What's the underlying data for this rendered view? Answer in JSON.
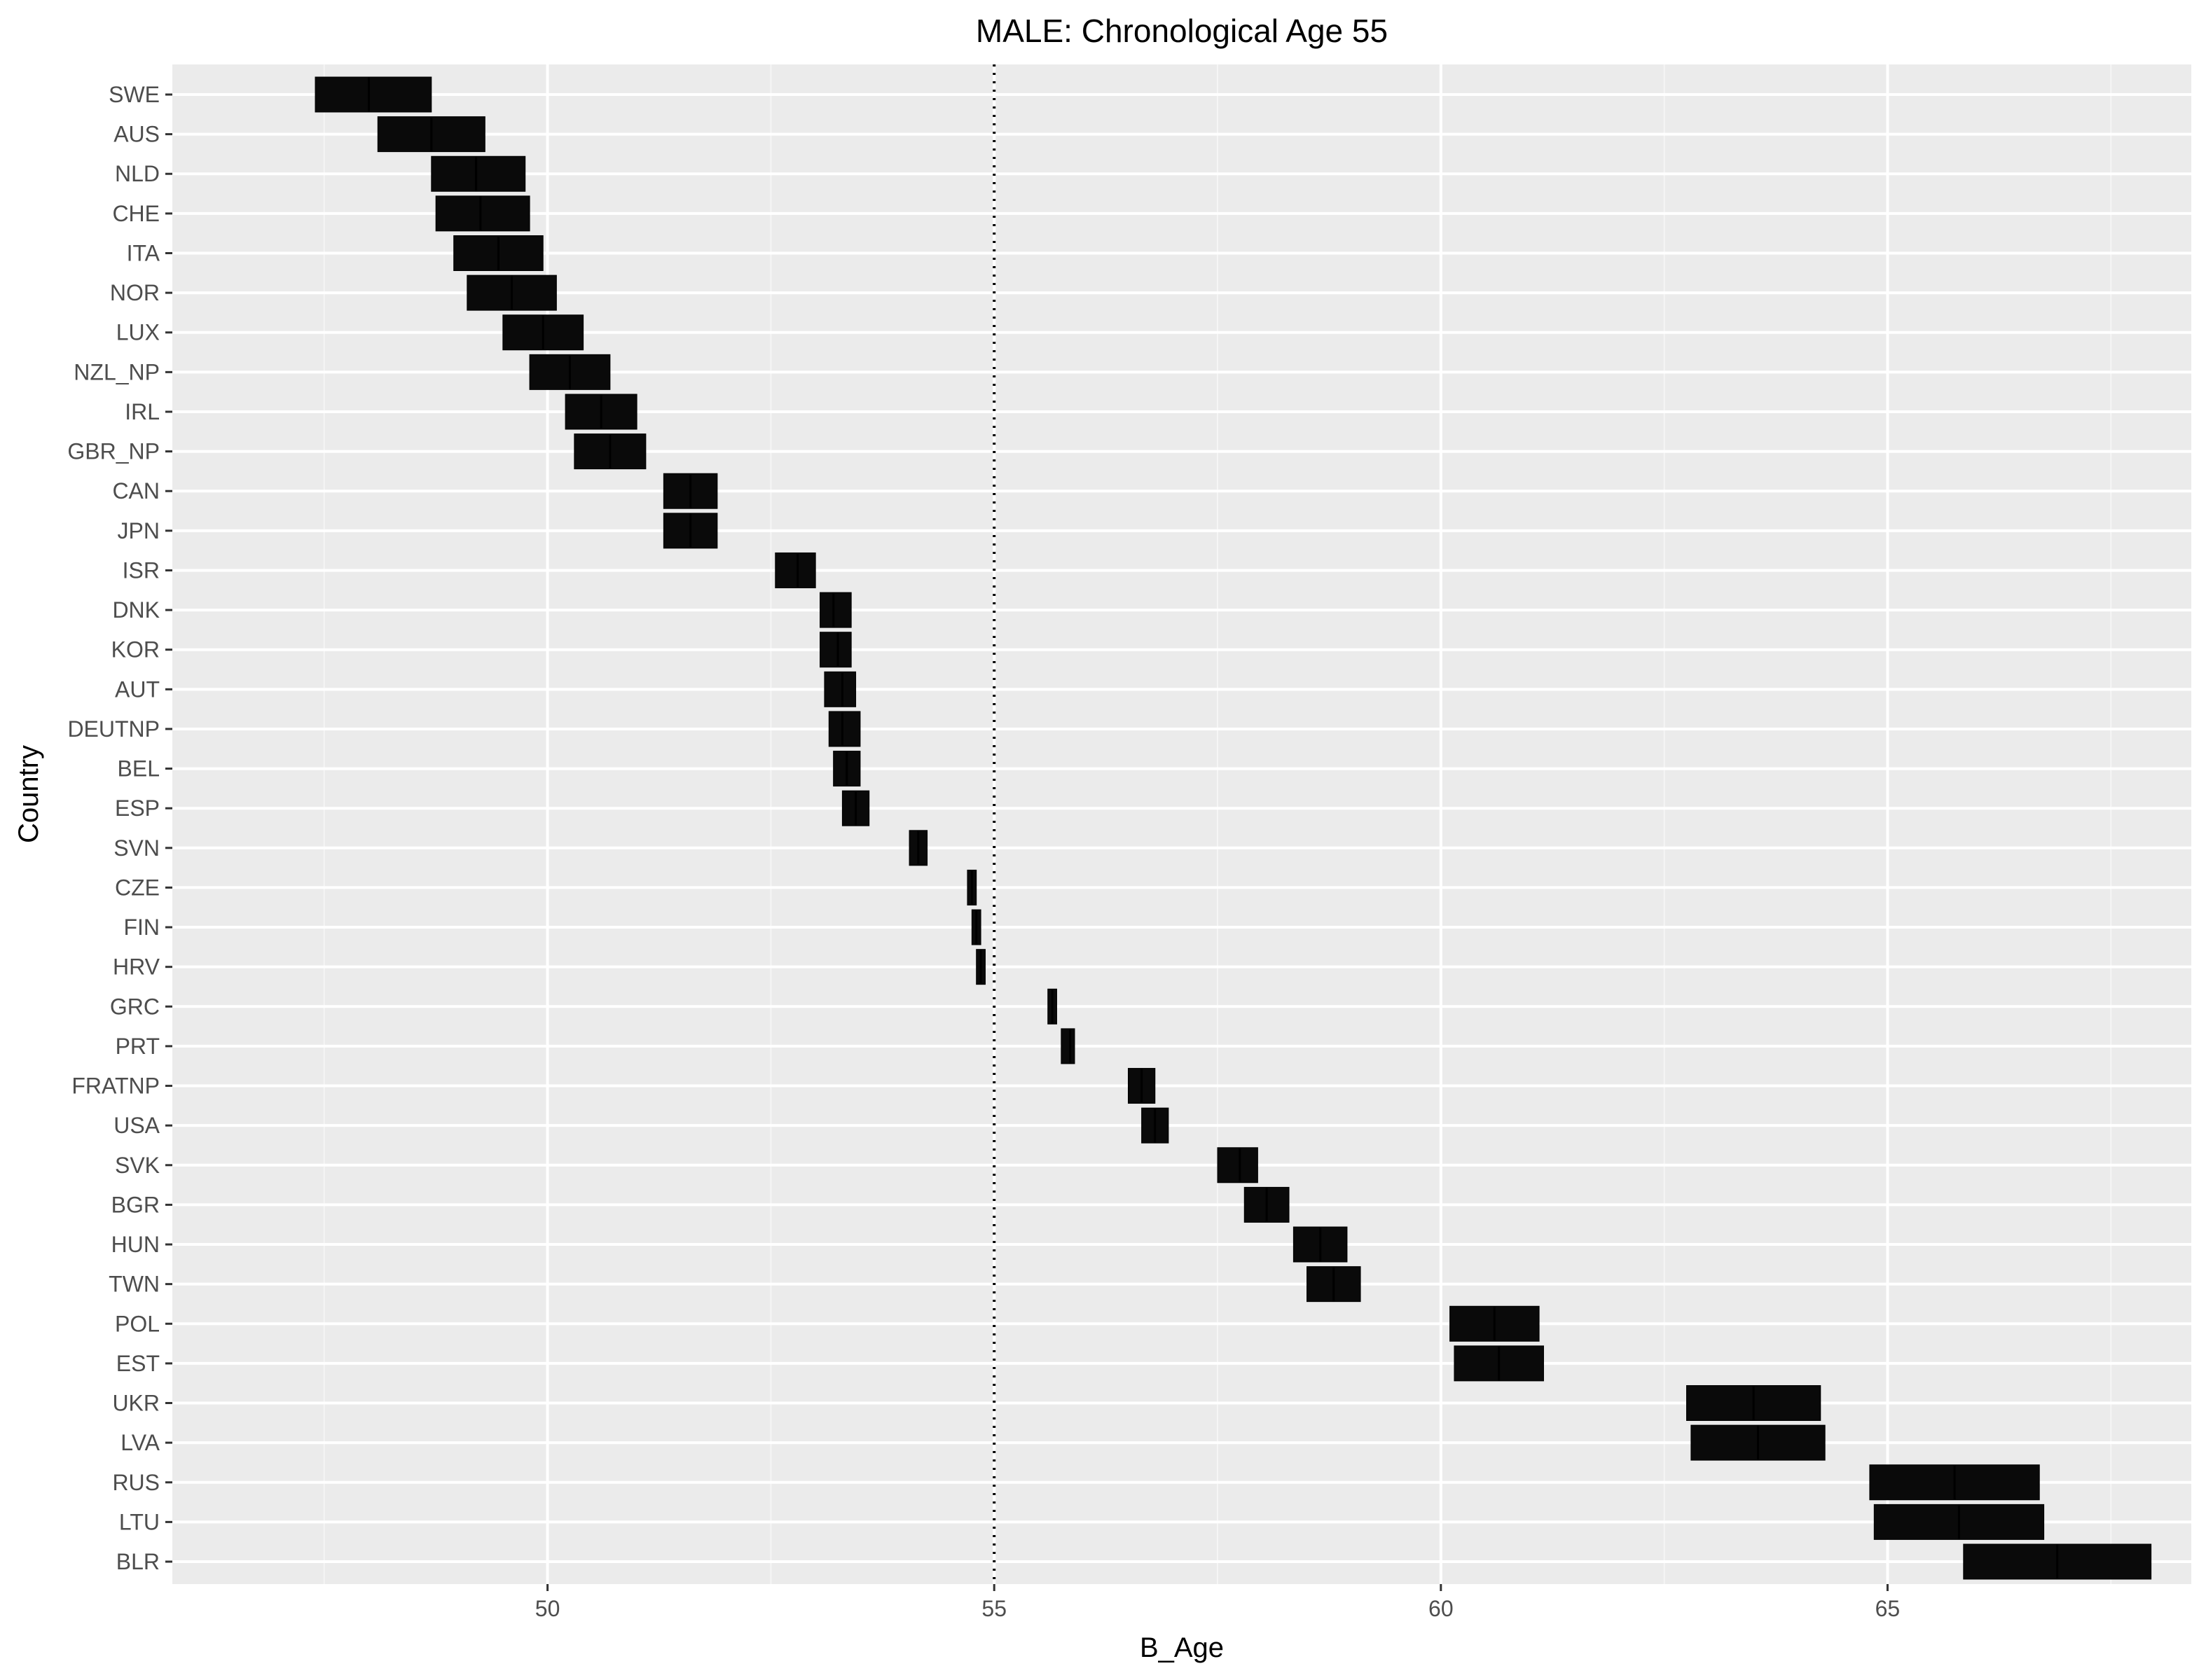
{
  "chart_data": {
    "type": "crossbar",
    "title": "MALE: Chronological Age 55",
    "xlabel": "B_Age",
    "ylabel": "Country",
    "xlim": [
      45.8,
      68.4
    ],
    "xticks": [
      50,
      55,
      60,
      65
    ],
    "reference_line": {
      "x": 55,
      "style": "dotted"
    },
    "grid": true,
    "colors": {
      "panel": "#ebebeb",
      "grid_major": "#ffffff",
      "grid_minor": "#f5f5f5",
      "bar": "#0a0a0a",
      "tick_text": "#4d4d4d"
    },
    "rows": [
      {
        "country": "SWE",
        "lo": 47.4,
        "mid": 48.0,
        "hi": 48.7
      },
      {
        "country": "AUS",
        "lo": 48.1,
        "mid": 48.7,
        "hi": 49.3
      },
      {
        "country": "NLD",
        "lo": 48.7,
        "mid": 49.2,
        "hi": 49.75
      },
      {
        "country": "CHE",
        "lo": 48.75,
        "mid": 49.25,
        "hi": 49.8
      },
      {
        "country": "ITA",
        "lo": 48.95,
        "mid": 49.45,
        "hi": 49.95
      },
      {
        "country": "NOR",
        "lo": 49.1,
        "mid": 49.6,
        "hi": 50.1
      },
      {
        "country": "LUX",
        "lo": 49.5,
        "mid": 49.95,
        "hi": 50.4
      },
      {
        "country": "NZL_NP",
        "lo": 49.8,
        "mid": 50.25,
        "hi": 50.7
      },
      {
        "country": "IRL",
        "lo": 50.2,
        "mid": 50.6,
        "hi": 51.0
      },
      {
        "country": "GBR_NP",
        "lo": 50.3,
        "mid": 50.7,
        "hi": 51.1
      },
      {
        "country": "CAN",
        "lo": 51.3,
        "mid": 51.6,
        "hi": 51.9
      },
      {
        "country": "JPN",
        "lo": 51.3,
        "mid": 51.6,
        "hi": 51.9
      },
      {
        "country": "ISR",
        "lo": 52.55,
        "mid": 52.8,
        "hi": 53.0
      },
      {
        "country": "DNK",
        "lo": 53.05,
        "mid": 53.2,
        "hi": 53.4
      },
      {
        "country": "KOR",
        "lo": 53.05,
        "mid": 53.25,
        "hi": 53.4
      },
      {
        "country": "AUT",
        "lo": 53.1,
        "mid": 53.3,
        "hi": 53.45
      },
      {
        "country": "DEUTNP",
        "lo": 53.15,
        "mid": 53.3,
        "hi": 53.5
      },
      {
        "country": "BEL",
        "lo": 53.2,
        "mid": 53.35,
        "hi": 53.5
      },
      {
        "country": "ESP",
        "lo": 53.3,
        "mid": 53.45,
        "hi": 53.6
      },
      {
        "country": "SVN",
        "lo": 54.05,
        "mid": 54.15,
        "hi": 54.25
      },
      {
        "country": "CZE",
        "lo": 54.7,
        "mid": 54.75,
        "hi": 54.8
      },
      {
        "country": "FIN",
        "lo": 54.75,
        "mid": 54.8,
        "hi": 54.85
      },
      {
        "country": "HRV",
        "lo": 54.8,
        "mid": 54.85,
        "hi": 54.9
      },
      {
        "country": "GRC",
        "lo": 55.6,
        "mid": 55.65,
        "hi": 55.7
      },
      {
        "country": "PRT",
        "lo": 55.75,
        "mid": 55.85,
        "hi": 55.9
      },
      {
        "country": "FRATNP",
        "lo": 56.5,
        "mid": 56.65,
        "hi": 56.8
      },
      {
        "country": "USA",
        "lo": 56.65,
        "mid": 56.8,
        "hi": 56.95
      },
      {
        "country": "SVK",
        "lo": 57.5,
        "mid": 57.75,
        "hi": 57.95
      },
      {
        "country": "BGR",
        "lo": 57.8,
        "mid": 58.05,
        "hi": 58.3
      },
      {
        "country": "HUN",
        "lo": 58.35,
        "mid": 58.65,
        "hi": 58.95
      },
      {
        "country": "TWN",
        "lo": 58.5,
        "mid": 58.8,
        "hi": 59.1
      },
      {
        "country": "POL",
        "lo": 60.1,
        "mid": 60.6,
        "hi": 61.1
      },
      {
        "country": "EST",
        "lo": 60.15,
        "mid": 60.65,
        "hi": 61.15
      },
      {
        "country": "UKR",
        "lo": 62.75,
        "mid": 63.5,
        "hi": 64.25
      },
      {
        "country": "LVA",
        "lo": 62.8,
        "mid": 63.55,
        "hi": 64.3
      },
      {
        "country": "RUS",
        "lo": 64.8,
        "mid": 65.75,
        "hi": 66.7
      },
      {
        "country": "LTU",
        "lo": 64.85,
        "mid": 65.8,
        "hi": 66.75
      },
      {
        "country": "BLR",
        "lo": 65.85,
        "mid": 66.9,
        "hi": 67.95
      }
    ]
  }
}
